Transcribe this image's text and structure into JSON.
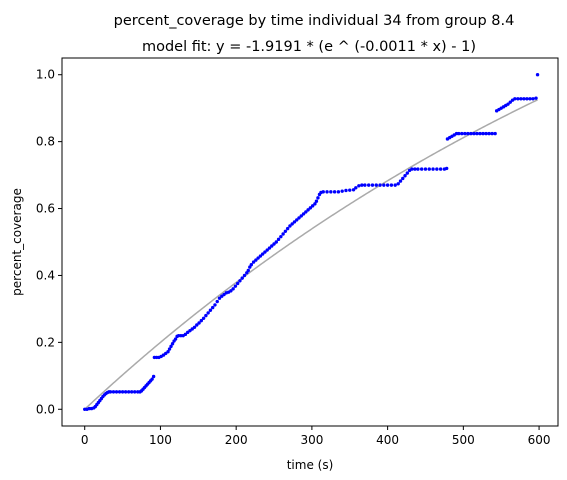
{
  "chart_data": {
    "type": "scatter",
    "title": "percent_coverage by time individual 34 from group 8.4",
    "subtitle": "model fit: y = -1.9191 * (e ^ (-0.0011 * x) - 1)",
    "xlabel": "time (s)",
    "ylabel": "percent_coverage",
    "xlim": [
      -30,
      625
    ],
    "ylim": [
      -0.05,
      1.05
    ],
    "xticks": [
      0,
      100,
      200,
      300,
      400,
      500,
      600
    ],
    "yticks": [
      0.0,
      0.2,
      0.4,
      0.6,
      0.8,
      1.0
    ],
    "xtick_labels": [
      "0",
      "100",
      "200",
      "300",
      "400",
      "500",
      "600"
    ],
    "ytick_labels": [
      "0.0",
      "0.2",
      "0.4",
      "0.6",
      "0.8",
      "1.0"
    ],
    "grid": false,
    "legend": "none",
    "series": [
      {
        "kind": "scatter",
        "color": "#0000ff",
        "points": [
          [
            0,
            0.0
          ],
          [
            3,
            0.0
          ],
          [
            6,
            0.002
          ],
          [
            9,
            0.002
          ],
          [
            12,
            0.004
          ],
          [
            14,
            0.008
          ],
          [
            16,
            0.014
          ],
          [
            18,
            0.02
          ],
          [
            20,
            0.026
          ],
          [
            22,
            0.032
          ],
          [
            24,
            0.038
          ],
          [
            26,
            0.043
          ],
          [
            28,
            0.047
          ],
          [
            30,
            0.05
          ],
          [
            32,
            0.052
          ],
          [
            34,
            0.052
          ],
          [
            38,
            0.052
          ],
          [
            42,
            0.052
          ],
          [
            46,
            0.052
          ],
          [
            50,
            0.052
          ],
          [
            54,
            0.052
          ],
          [
            58,
            0.052
          ],
          [
            62,
            0.052
          ],
          [
            66,
            0.052
          ],
          [
            70,
            0.052
          ],
          [
            73,
            0.052
          ],
          [
            75,
            0.055
          ],
          [
            77,
            0.06
          ],
          [
            79,
            0.065
          ],
          [
            81,
            0.07
          ],
          [
            83,
            0.075
          ],
          [
            85,
            0.08
          ],
          [
            87,
            0.085
          ],
          [
            89,
            0.09
          ],
          [
            91,
            0.098
          ],
          [
            92,
            0.155
          ],
          [
            95,
            0.155
          ],
          [
            98,
            0.155
          ],
          [
            101,
            0.158
          ],
          [
            104,
            0.162
          ],
          [
            107,
            0.167
          ],
          [
            110,
            0.172
          ],
          [
            112,
            0.18
          ],
          [
            114,
            0.188
          ],
          [
            116,
            0.196
          ],
          [
            118,
            0.204
          ],
          [
            120,
            0.21
          ],
          [
            122,
            0.218
          ],
          [
            124,
            0.22
          ],
          [
            127,
            0.22
          ],
          [
            130,
            0.22
          ],
          [
            133,
            0.224
          ],
          [
            136,
            0.23
          ],
          [
            139,
            0.235
          ],
          [
            142,
            0.24
          ],
          [
            145,
            0.245
          ],
          [
            148,
            0.252
          ],
          [
            151,
            0.258
          ],
          [
            154,
            0.265
          ],
          [
            157,
            0.272
          ],
          [
            160,
            0.28
          ],
          [
            163,
            0.288
          ],
          [
            166,
            0.296
          ],
          [
            169,
            0.304
          ],
          [
            172,
            0.312
          ],
          [
            175,
            0.322
          ],
          [
            178,
            0.332
          ],
          [
            181,
            0.338
          ],
          [
            184,
            0.343
          ],
          [
            187,
            0.348
          ],
          [
            190,
            0.35
          ],
          [
            193,
            0.354
          ],
          [
            196,
            0.36
          ],
          [
            199,
            0.368
          ],
          [
            202,
            0.376
          ],
          [
            205,
            0.384
          ],
          [
            208,
            0.392
          ],
          [
            211,
            0.4
          ],
          [
            214,
            0.408
          ],
          [
            216,
            0.415
          ],
          [
            218,
            0.425
          ],
          [
            220,
            0.432
          ],
          [
            223,
            0.44
          ],
          [
            226,
            0.446
          ],
          [
            229,
            0.452
          ],
          [
            232,
            0.458
          ],
          [
            235,
            0.464
          ],
          [
            238,
            0.47
          ],
          [
            241,
            0.476
          ],
          [
            244,
            0.482
          ],
          [
            247,
            0.488
          ],
          [
            250,
            0.494
          ],
          [
            253,
            0.5
          ],
          [
            256,
            0.508
          ],
          [
            259,
            0.516
          ],
          [
            262,
            0.524
          ],
          [
            265,
            0.532
          ],
          [
            268,
            0.54
          ],
          [
            271,
            0.548
          ],
          [
            274,
            0.554
          ],
          [
            277,
            0.56
          ],
          [
            280,
            0.566
          ],
          [
            283,
            0.572
          ],
          [
            286,
            0.578
          ],
          [
            289,
            0.584
          ],
          [
            292,
            0.59
          ],
          [
            295,
            0.596
          ],
          [
            298,
            0.602
          ],
          [
            301,
            0.608
          ],
          [
            304,
            0.614
          ],
          [
            306,
            0.622
          ],
          [
            308,
            0.632
          ],
          [
            310,
            0.642
          ],
          [
            312,
            0.648
          ],
          [
            315,
            0.65
          ],
          [
            320,
            0.65
          ],
          [
            325,
            0.65
          ],
          [
            330,
            0.65
          ],
          [
            335,
            0.65
          ],
          [
            340,
            0.652
          ],
          [
            345,
            0.654
          ],
          [
            350,
            0.655
          ],
          [
            355,
            0.656
          ],
          [
            358,
            0.662
          ],
          [
            362,
            0.668
          ],
          [
            366,
            0.67
          ],
          [
            370,
            0.67
          ],
          [
            375,
            0.67
          ],
          [
            380,
            0.67
          ],
          [
            385,
            0.67
          ],
          [
            390,
            0.67
          ],
          [
            395,
            0.67
          ],
          [
            400,
            0.67
          ],
          [
            405,
            0.67
          ],
          [
            410,
            0.67
          ],
          [
            414,
            0.674
          ],
          [
            417,
            0.682
          ],
          [
            420,
            0.69
          ],
          [
            423,
            0.698
          ],
          [
            426,
            0.706
          ],
          [
            429,
            0.714
          ],
          [
            432,
            0.718
          ],
          [
            436,
            0.718
          ],
          [
            440,
            0.718
          ],
          [
            445,
            0.718
          ],
          [
            450,
            0.718
          ],
          [
            455,
            0.718
          ],
          [
            460,
            0.718
          ],
          [
            465,
            0.718
          ],
          [
            470,
            0.718
          ],
          [
            475,
            0.718
          ],
          [
            478,
            0.72
          ],
          [
            479,
            0.808
          ],
          [
            482,
            0.812
          ],
          [
            485,
            0.816
          ],
          [
            488,
            0.82
          ],
          [
            491,
            0.824
          ],
          [
            494,
            0.824
          ],
          [
            498,
            0.824
          ],
          [
            502,
            0.824
          ],
          [
            506,
            0.824
          ],
          [
            510,
            0.824
          ],
          [
            514,
            0.824
          ],
          [
            518,
            0.824
          ],
          [
            522,
            0.824
          ],
          [
            526,
            0.824
          ],
          [
            530,
            0.824
          ],
          [
            534,
            0.824
          ],
          [
            538,
            0.824
          ],
          [
            542,
            0.824
          ],
          [
            544,
            0.892
          ],
          [
            547,
            0.896
          ],
          [
            550,
            0.9
          ],
          [
            553,
            0.904
          ],
          [
            556,
            0.908
          ],
          [
            559,
            0.912
          ],
          [
            562,
            0.918
          ],
          [
            565,
            0.924
          ],
          [
            568,
            0.928
          ],
          [
            572,
            0.928
          ],
          [
            576,
            0.928
          ],
          [
            580,
            0.928
          ],
          [
            584,
            0.928
          ],
          [
            588,
            0.928
          ],
          [
            592,
            0.928
          ],
          [
            596,
            0.93
          ],
          [
            598,
            1.0
          ]
        ]
      },
      {
        "kind": "fit-line",
        "color": "#aaaaaa",
        "equation": {
          "a": -1.9191,
          "b": -0.0011
        },
        "x_range": [
          0,
          598
        ]
      }
    ]
  }
}
